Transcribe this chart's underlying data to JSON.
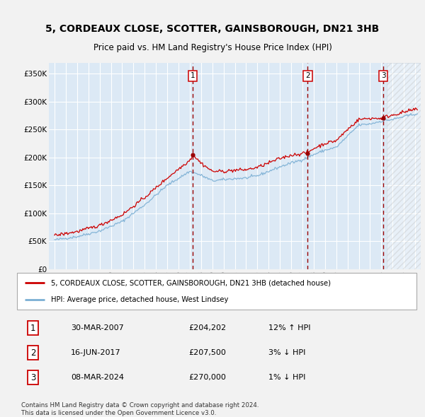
{
  "title": "5, CORDEAUX CLOSE, SCOTTER, GAINSBOROUGH, DN21 3HB",
  "subtitle": "Price paid vs. HM Land Registry's House Price Index (HPI)",
  "ylabel_values": [
    "£0",
    "£50K",
    "£100K",
    "£150K",
    "£200K",
    "£250K",
    "£300K",
    "£350K"
  ],
  "yticks": [
    0,
    50000,
    100000,
    150000,
    200000,
    250000,
    300000,
    350000
  ],
  "ylim": [
    0,
    370000
  ],
  "xlim_start": 1994.5,
  "xlim_end": 2027.5,
  "sale_dates": [
    2007.25,
    2017.46,
    2024.18
  ],
  "sale_prices": [
    204202,
    207500,
    270000
  ],
  "sale_labels": [
    "1",
    "2",
    "3"
  ],
  "sale_info": [
    {
      "label": "1",
      "date": "30-MAR-2007",
      "price": "£204,202",
      "pct": "12% ↑ HPI"
    },
    {
      "label": "2",
      "date": "16-JUN-2017",
      "price": "£207,500",
      "pct": "3% ↓ HPI"
    },
    {
      "label": "3",
      "date": "08-MAR-2024",
      "price": "£270,000",
      "pct": "1% ↓ HPI"
    }
  ],
  "legend_entries": [
    {
      "label": "5, CORDEAUX CLOSE, SCOTTER, GAINSBOROUGH, DN21 3HB (detached house)",
      "color": "#cc0000"
    },
    {
      "label": "HPI: Average price, detached house, West Lindsey",
      "color": "#7bafd4"
    }
  ],
  "footer": "Contains HM Land Registry data © Crown copyright and database right 2024.\nThis data is licensed under the Open Government Licence v3.0.",
  "bg_color": "#f2f2f2",
  "chart_bg_color": "#dce9f5",
  "grid_color": "#ffffff",
  "hatch_start": 2024.5,
  "title_fontsize": 10,
  "subtitle_fontsize": 8.5
}
